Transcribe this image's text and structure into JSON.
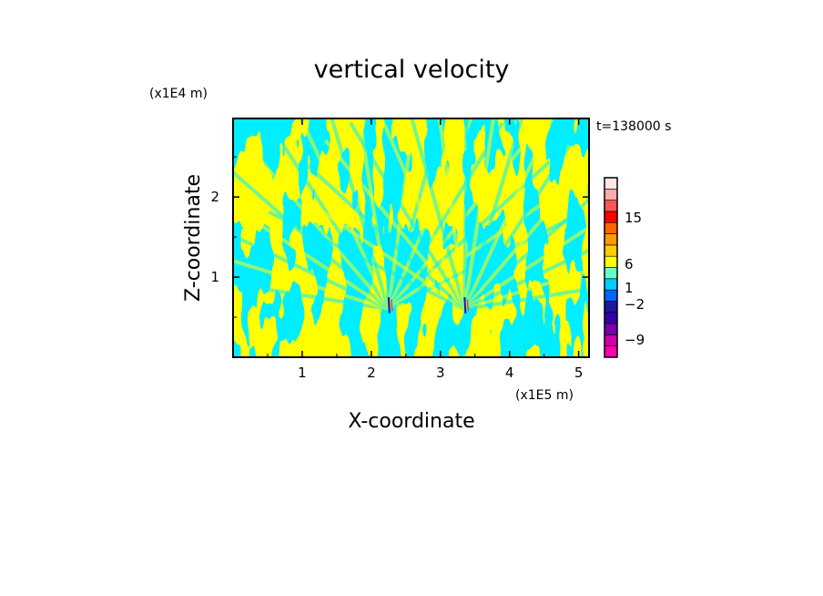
{
  "chart_data": {
    "type": "heatmap",
    "title": "vertical velocity",
    "xlabel": "X-coordinate",
    "ylabel": "Z-coordinate",
    "x_unit": "(x1E5 m)",
    "y_unit": "(x1E4 m)",
    "time_label": "t=138000 s",
    "xlim": [
      0,
      5.15
    ],
    "ylim": [
      0,
      2.98
    ],
    "x_ticks": [
      {
        "value": 1,
        "label": "1"
      },
      {
        "value": 2,
        "label": "2"
      },
      {
        "value": 3,
        "label": "3"
      },
      {
        "value": 4,
        "label": "4"
      },
      {
        "value": 5,
        "label": "5"
      }
    ],
    "y_ticks": [
      {
        "value": 1,
        "label": "1"
      },
      {
        "value": 2,
        "label": "2"
      }
    ],
    "field_colors": {
      "positive": "#ffff00",
      "negative": "#00eeff",
      "strong_negative": "#1a1aa0",
      "strong_positive": "#ff3060"
    },
    "colorbar": {
      "levels": [
        {
          "color": "#ff00aa"
        },
        {
          "color": "#cc00aa"
        },
        {
          "color": "#7a00aa"
        },
        {
          "color": "#3300aa"
        },
        {
          "color": "#1a1aa0"
        },
        {
          "color": "#0066ff"
        },
        {
          "color": "#00ccff"
        },
        {
          "color": "#66ffcc"
        },
        {
          "color": "#ffff00"
        },
        {
          "color": "#ffcc00"
        },
        {
          "color": "#ff9900"
        },
        {
          "color": "#ff6600"
        },
        {
          "color": "#ff0000"
        },
        {
          "color": "#ff5555"
        },
        {
          "color": "#ffaaaa"
        },
        {
          "color": "#ffe5e5"
        }
      ],
      "labels": [
        {
          "value": -9,
          "label": "−9"
        },
        {
          "value": -2,
          "label": "−2"
        },
        {
          "value": 1,
          "label": "1"
        },
        {
          "value": 6,
          "label": "6"
        },
        {
          "value": 15,
          "label": "15"
        }
      ]
    }
  }
}
